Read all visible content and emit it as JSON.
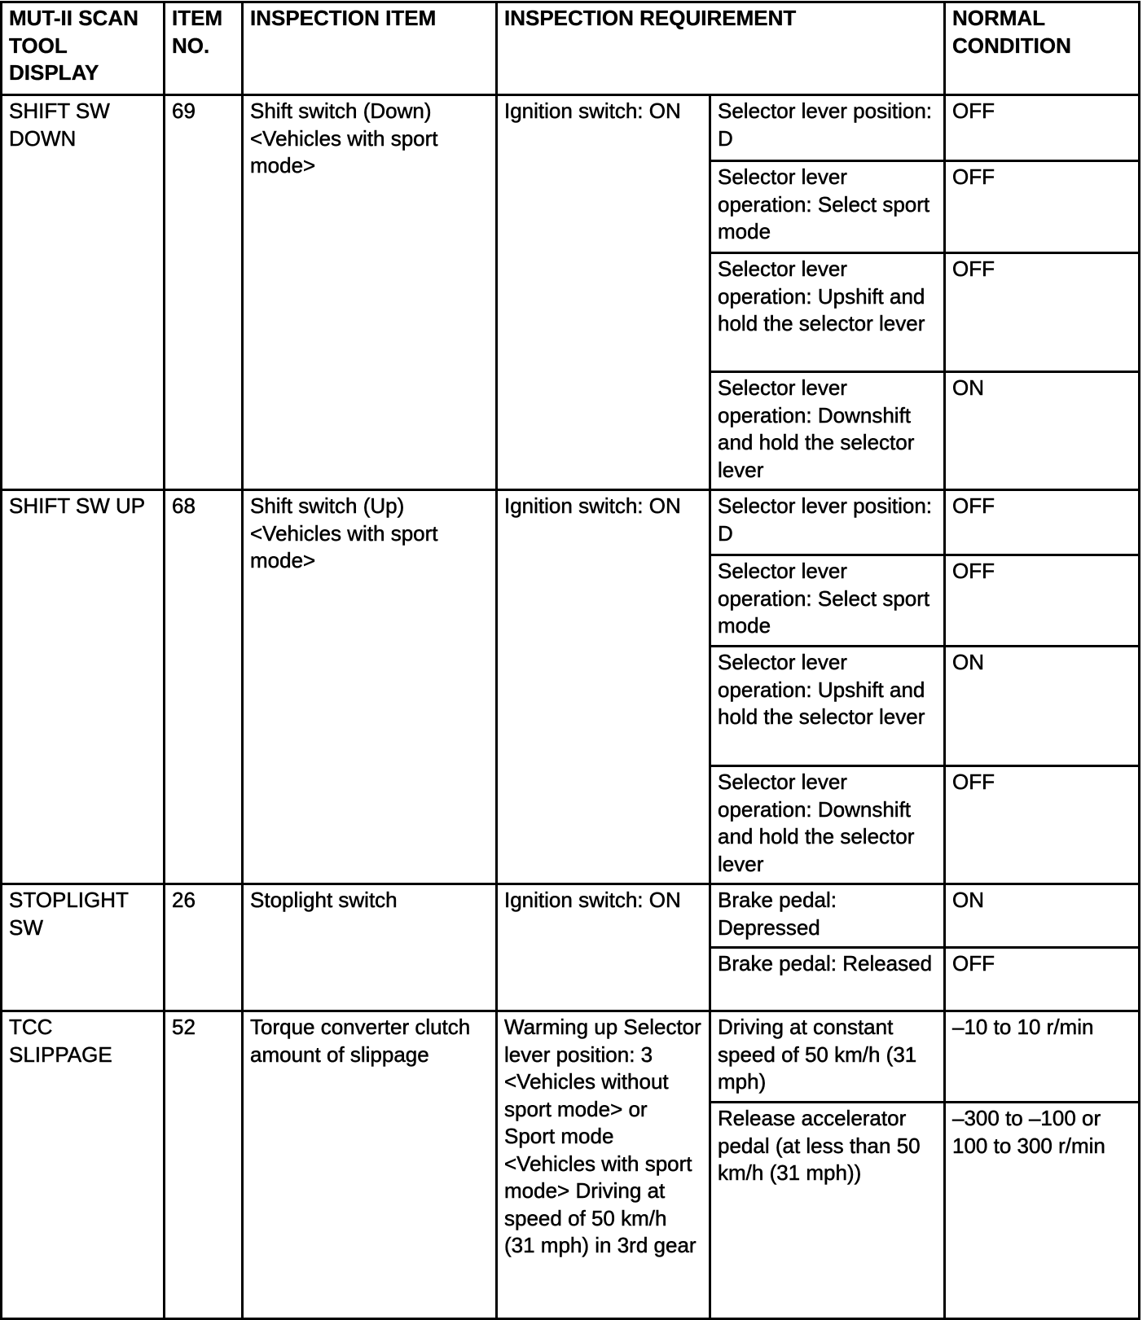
{
  "headers": {
    "display": "MUT-II SCAN TOOL DISPLAY",
    "item_no": "ITEM NO.",
    "inspection_item": "INSPECTION ITEM",
    "inspection_requirement": "INSPECTION REQUIREMENT",
    "normal_condition": "NORMAL CONDITION"
  },
  "rows": [
    {
      "display": "SHIFT SW DOWN",
      "item_no": "69",
      "inspection_item": "Shift switch (Down) <Vehicles with sport mode>",
      "requirement": "Ignition switch: ON",
      "conditions": [
        {
          "condition": "Selector lever position: D",
          "normal": "OFF"
        },
        {
          "condition": "Selector lever operation: Select sport mode",
          "normal": "OFF"
        },
        {
          "condition": "Selector lever operation: Upshift and hold the selector lever",
          "normal": "OFF"
        },
        {
          "condition": "Selector lever operation: Downshift and hold the selector lever",
          "normal": "ON"
        }
      ]
    },
    {
      "display": "SHIFT SW UP",
      "item_no": "68",
      "inspection_item": "Shift switch (Up) <Vehicles with sport mode>",
      "requirement": "Ignition switch: ON",
      "conditions": [
        {
          "condition": "Selector lever position: D",
          "normal": "OFF"
        },
        {
          "condition": "Selector lever operation: Select sport mode",
          "normal": "OFF"
        },
        {
          "condition": "Selector lever operation: Upshift and hold the selector lever",
          "normal": "ON"
        },
        {
          "condition": "Selector lever operation: Downshift and hold the selector lever",
          "normal": "OFF"
        }
      ]
    },
    {
      "display": "STOPLIGHT SW",
      "item_no": "26",
      "inspection_item": "Stoplight switch",
      "requirement": "Ignition switch: ON",
      "conditions": [
        {
          "condition": "Brake pedal: Depressed",
          "normal": "ON"
        },
        {
          "condition": "Brake pedal: Released",
          "normal": "OFF"
        }
      ]
    },
    {
      "display": "TCC SLIPPAGE",
      "item_no": "52",
      "inspection_item": "Torque converter clutch amount of slippage",
      "requirement": "Warming up Selector lever position: 3 <Vehicles without sport mode> or Sport mode <Vehicles with sport mode> Driving at speed of 50 km/h (31 mph) in 3rd gear",
      "conditions": [
        {
          "condition": "Driving at constant speed of 50 km/h (31 mph)",
          "normal": "–10 to 10 r/min"
        },
        {
          "condition": "Release accelerator pedal (at less than 50 km/h (31 mph))",
          "normal": "–300 to –100 or 100 to 300 r/min"
        }
      ]
    }
  ]
}
